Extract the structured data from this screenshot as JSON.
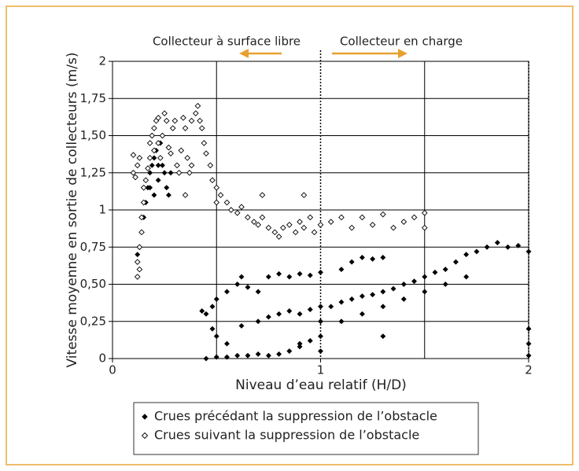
{
  "chart_data": {
    "type": "scatter",
    "xlabel": "Niveau d’eau relatif (H/D)",
    "ylabel": "Vitesse moyenne en sortie de collecteurs (m/s)",
    "annotations": [
      "Collecteur à surface libre",
      "Collecteur en charge"
    ],
    "xlim": [
      0,
      2
    ],
    "ylim": [
      0,
      2
    ],
    "xticks": [
      0,
      1,
      2
    ],
    "xgrid": [
      0.5,
      1.5
    ],
    "xdotted": [
      1,
      2
    ],
    "yticks": [
      0,
      {
        "value": 0.25,
        "label": "0,25"
      },
      {
        "value": 0.5,
        "label": "0,50"
      },
      {
        "value": 0.75,
        "label": "0,75"
      },
      1,
      {
        "value": 1.25,
        "label": "1,25"
      },
      {
        "value": 1.5,
        "label": "1,50"
      },
      {
        "value": 1.75,
        "label": "1,75"
      },
      2
    ],
    "grid": true,
    "series": [
      {
        "name": "Crues précédant la suppression de l’obstacle",
        "color": "#000000",
        "marker": "filled-diamond",
        "x": [
          0.12,
          0.13,
          0.14,
          0.15,
          0.16,
          0.17,
          0.18,
          0.19,
          0.2,
          0.21,
          0.22,
          0.22,
          0.2,
          0.23,
          0.24,
          0.25,
          0.26,
          0.27,
          0.28,
          0.18,
          0.43,
          0.45,
          0.48,
          0.5,
          0.55,
          0.6,
          0.62,
          0.65,
          0.7,
          0.75,
          0.8,
          0.85,
          0.9,
          0.95,
          1.0,
          1.1,
          1.15,
          1.2,
          1.25,
          1.3,
          0.45,
          0.5,
          0.55,
          0.6,
          0.65,
          0.7,
          0.75,
          0.8,
          0.85,
          0.9,
          0.95,
          1.0,
          0.48,
          0.5,
          0.55,
          0.62,
          0.7,
          0.75,
          0.8,
          0.85,
          0.9,
          0.95,
          1.0,
          1.05,
          1.1,
          1.15,
          1.2,
          1.25,
          1.3,
          1.35,
          1.4,
          1.45,
          1.5,
          1.55,
          1.6,
          1.65,
          1.7,
          1.75,
          1.8,
          1.85,
          1.9,
          1.95,
          2.0,
          1.0,
          1.1,
          1.2,
          1.3,
          1.4,
          1.5,
          1.6,
          1.7,
          0.9,
          1.0,
          1.3,
          2.0,
          2.0,
          2.0
        ],
        "values": [
          0.7,
          0.75,
          0.85,
          0.95,
          1.05,
          1.15,
          1.25,
          1.3,
          1.35,
          1.4,
          1.3,
          1.2,
          1.1,
          1.45,
          1.3,
          1.25,
          1.15,
          1.1,
          1.25,
          1.15,
          0.32,
          0.3,
          0.35,
          0.4,
          0.45,
          0.5,
          0.55,
          0.48,
          0.45,
          0.55,
          0.57,
          0.55,
          0.57,
          0.56,
          0.58,
          0.6,
          0.65,
          0.68,
          0.67,
          0.68,
          0.0,
          0.01,
          0.01,
          0.02,
          0.02,
          0.03,
          0.02,
          0.03,
          0.05,
          0.08,
          0.12,
          0.15,
          0.2,
          0.15,
          0.1,
          0.22,
          0.25,
          0.28,
          0.3,
          0.32,
          0.3,
          0.33,
          0.35,
          0.35,
          0.38,
          0.4,
          0.42,
          0.43,
          0.45,
          0.47,
          0.5,
          0.52,
          0.55,
          0.58,
          0.6,
          0.65,
          0.7,
          0.72,
          0.75,
          0.78,
          0.75,
          0.76,
          0.72,
          0.25,
          0.25,
          0.3,
          0.35,
          0.4,
          0.45,
          0.5,
          0.55,
          0.1,
          0.05,
          0.15,
          0.2,
          0.1,
          0.02
        ]
      },
      {
        "name": "Crues suivant la suppression de l’obstacle",
        "color": "#000000",
        "marker": "hollow-diamond",
        "x": [
          0.1,
          0.1,
          0.11,
          0.12,
          0.13,
          0.12,
          0.12,
          0.13,
          0.13,
          0.14,
          0.14,
          0.15,
          0.15,
          0.16,
          0.17,
          0.18,
          0.18,
          0.19,
          0.2,
          0.2,
          0.21,
          0.22,
          0.22,
          0.23,
          0.24,
          0.25,
          0.26,
          0.27,
          0.28,
          0.29,
          0.3,
          0.31,
          0.32,
          0.33,
          0.34,
          0.35,
          0.36,
          0.37,
          0.38,
          0.4,
          0.41,
          0.42,
          0.43,
          0.44,
          0.45,
          0.47,
          0.48,
          0.5,
          0.5,
          0.52,
          0.55,
          0.57,
          0.6,
          0.62,
          0.65,
          0.68,
          0.7,
          0.72,
          0.75,
          0.78,
          0.8,
          0.82,
          0.85,
          0.88,
          0.9,
          0.92,
          0.95,
          0.97,
          1.0,
          1.05,
          1.1,
          1.15,
          1.2,
          1.25,
          1.3,
          1.35,
          1.4,
          1.45,
          1.5,
          1.5,
          0.72,
          0.92,
          0.35,
          0.38
        ],
        "values": [
          1.37,
          1.25,
          1.22,
          1.3,
          1.35,
          0.65,
          0.55,
          0.6,
          0.75,
          0.85,
          0.95,
          1.05,
          1.15,
          1.2,
          1.28,
          1.35,
          1.45,
          1.5,
          1.55,
          1.4,
          1.6,
          1.62,
          1.45,
          1.35,
          1.5,
          1.65,
          1.6,
          1.42,
          1.38,
          1.55,
          1.6,
          1.3,
          1.25,
          1.4,
          1.62,
          1.55,
          1.35,
          1.25,
          1.6,
          1.65,
          1.7,
          1.6,
          1.55,
          1.45,
          1.38,
          1.3,
          1.2,
          1.15,
          1.05,
          1.1,
          1.05,
          1.0,
          0.98,
          1.02,
          0.95,
          0.92,
          0.9,
          0.95,
          0.88,
          0.85,
          0.82,
          0.88,
          0.9,
          0.85,
          0.92,
          0.88,
          0.95,
          0.85,
          0.9,
          0.92,
          0.95,
          0.88,
          0.95,
          0.9,
          0.97,
          0.88,
          0.92,
          0.95,
          0.88,
          0.98,
          1.1,
          1.1,
          1.1,
          1.3
        ]
      }
    ]
  }
}
